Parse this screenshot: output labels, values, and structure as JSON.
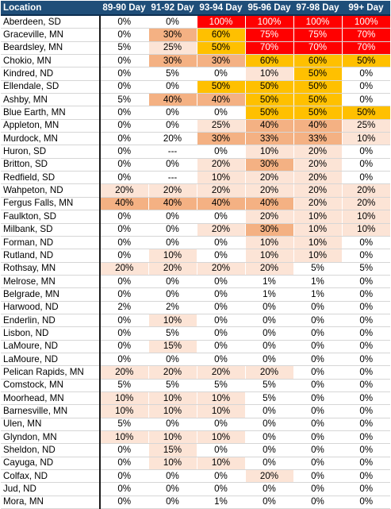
{
  "table": {
    "headers": [
      "Location",
      "89-90 Day",
      "91-92 Day",
      "93-94 Day",
      "95-96 Day",
      "97-98 Day",
      "99+ Day"
    ],
    "legend_colors": {
      "none": "#ffffff",
      "light": "#fce4d6",
      "medium": "#f4b183",
      "orange": "#ffc000",
      "red": "#ff0000",
      "header": "#1f4e79"
    },
    "rows": [
      {
        "location": "Aberdeen, SD",
        "values": [
          "0%",
          "0%",
          "100%",
          "100%",
          "100%",
          "100%"
        ],
        "levels": [
          "n",
          "n",
          "r",
          "r",
          "r",
          "r"
        ]
      },
      {
        "location": "Graceville, MN",
        "values": [
          "0%",
          "30%",
          "60%",
          "75%",
          "75%",
          "70%"
        ],
        "levels": [
          "n",
          "m",
          "o",
          "r",
          "r",
          "r"
        ]
      },
      {
        "location": "Beardsley, MN",
        "values": [
          "5%",
          "25%",
          "50%",
          "70%",
          "70%",
          "70%"
        ],
        "levels": [
          "n",
          "l",
          "o",
          "r",
          "r",
          "r"
        ]
      },
      {
        "location": "Chokio, MN",
        "values": [
          "0%",
          "30%",
          "30%",
          "60%",
          "60%",
          "50%"
        ],
        "levels": [
          "n",
          "m",
          "m",
          "o",
          "o",
          "o"
        ]
      },
      {
        "location": "Kindred, ND",
        "values": [
          "0%",
          "5%",
          "0%",
          "10%",
          "50%",
          "0%"
        ],
        "levels": [
          "n",
          "n",
          "n",
          "l",
          "o",
          "n"
        ]
      },
      {
        "location": "Ellendale, SD",
        "values": [
          "0%",
          "0%",
          "50%",
          "50%",
          "50%",
          "0%"
        ],
        "levels": [
          "n",
          "n",
          "o",
          "o",
          "o",
          "n"
        ]
      },
      {
        "location": "Ashby, MN",
        "values": [
          "5%",
          "40%",
          "40%",
          "50%",
          "50%",
          "0%"
        ],
        "levels": [
          "n",
          "m",
          "m",
          "o",
          "o",
          "n"
        ]
      },
      {
        "location": "Blue Earth, MN",
        "values": [
          "0%",
          "0%",
          "0%",
          "50%",
          "50%",
          "50%"
        ],
        "levels": [
          "n",
          "n",
          "n",
          "o",
          "o",
          "o"
        ]
      },
      {
        "location": "Appleton, MN",
        "values": [
          "0%",
          "0%",
          "25%",
          "40%",
          "40%",
          "25%"
        ],
        "levels": [
          "n",
          "n",
          "l",
          "m",
          "m",
          "l"
        ]
      },
      {
        "location": "Murdock, MN",
        "values": [
          "0%",
          "20%",
          "30%",
          "33%",
          "33%",
          "10%"
        ],
        "levels": [
          "n",
          "n",
          "m",
          "m",
          "m",
          "l"
        ]
      },
      {
        "location": "Huron, SD",
        "values": [
          "0%",
          "---",
          "0%",
          "10%",
          "20%",
          "0%"
        ],
        "levels": [
          "n",
          "n",
          "n",
          "l",
          "l",
          "n"
        ]
      },
      {
        "location": "Britton, SD",
        "values": [
          "0%",
          "0%",
          "20%",
          "30%",
          "20%",
          "0%"
        ],
        "levels": [
          "n",
          "n",
          "l",
          "m",
          "l",
          "n"
        ]
      },
      {
        "location": "Redfield, SD",
        "values": [
          "0%",
          "---",
          "10%",
          "20%",
          "20%",
          "0%"
        ],
        "levels": [
          "n",
          "n",
          "l",
          "l",
          "l",
          "n"
        ]
      },
      {
        "location": "Wahpeton, ND",
        "values": [
          "20%",
          "20%",
          "20%",
          "20%",
          "20%",
          "20%"
        ],
        "levels": [
          "l",
          "l",
          "l",
          "l",
          "l",
          "l"
        ]
      },
      {
        "location": "Fergus Falls, MN",
        "values": [
          "40%",
          "40%",
          "40%",
          "40%",
          "20%",
          "20%"
        ],
        "levels": [
          "m",
          "m",
          "m",
          "m",
          "l",
          "l"
        ]
      },
      {
        "location": "Faulkton, SD",
        "values": [
          "0%",
          "0%",
          "0%",
          "20%",
          "10%",
          "10%"
        ],
        "levels": [
          "n",
          "n",
          "n",
          "l",
          "l",
          "l"
        ]
      },
      {
        "location": "Milbank, SD",
        "values": [
          "0%",
          "0%",
          "20%",
          "30%",
          "10%",
          "10%"
        ],
        "levels": [
          "n",
          "n",
          "l",
          "m",
          "l",
          "l"
        ]
      },
      {
        "location": "Forman, ND",
        "values": [
          "0%",
          "0%",
          "0%",
          "10%",
          "10%",
          "0%"
        ],
        "levels": [
          "n",
          "n",
          "n",
          "l",
          "l",
          "n"
        ]
      },
      {
        "location": "Rutland, ND",
        "values": [
          "0%",
          "10%",
          "0%",
          "10%",
          "10%",
          "0%"
        ],
        "levels": [
          "n",
          "l",
          "n",
          "l",
          "l",
          "n"
        ]
      },
      {
        "location": "Rothsay, MN",
        "values": [
          "20%",
          "20%",
          "20%",
          "20%",
          "5%",
          "5%"
        ],
        "levels": [
          "l",
          "l",
          "l",
          "l",
          "n",
          "n"
        ]
      },
      {
        "location": "Melrose, MN",
        "values": [
          "0%",
          "0%",
          "0%",
          "1%",
          "1%",
          "0%"
        ],
        "levels": [
          "n",
          "n",
          "n",
          "n",
          "n",
          "n"
        ]
      },
      {
        "location": "Belgrade, MN",
        "values": [
          "0%",
          "0%",
          "0%",
          "1%",
          "1%",
          "0%"
        ],
        "levels": [
          "n",
          "n",
          "n",
          "n",
          "n",
          "n"
        ]
      },
      {
        "location": "Harwood, ND",
        "values": [
          "2%",
          "2%",
          "0%",
          "0%",
          "0%",
          "0%"
        ],
        "levels": [
          "n",
          "n",
          "n",
          "n",
          "n",
          "n"
        ]
      },
      {
        "location": "Enderlin, ND",
        "values": [
          "0%",
          "10%",
          "0%",
          "0%",
          "0%",
          "0%"
        ],
        "levels": [
          "n",
          "l",
          "n",
          "n",
          "n",
          "n"
        ]
      },
      {
        "location": "Lisbon, ND",
        "values": [
          "0%",
          "5%",
          "0%",
          "0%",
          "0%",
          "0%"
        ],
        "levels": [
          "n",
          "n",
          "n",
          "n",
          "n",
          "n"
        ]
      },
      {
        "location": "LaMoure, ND",
        "values": [
          "0%",
          "15%",
          "0%",
          "0%",
          "0%",
          "0%"
        ],
        "levels": [
          "n",
          "l",
          "n",
          "n",
          "n",
          "n"
        ]
      },
      {
        "location": "LaMoure, ND",
        "values": [
          "0%",
          "0%",
          "0%",
          "0%",
          "0%",
          "0%"
        ],
        "levels": [
          "n",
          "n",
          "n",
          "n",
          "n",
          "n"
        ]
      },
      {
        "location": "Pelican Rapids, MN",
        "values": [
          "20%",
          "20%",
          "20%",
          "20%",
          "0%",
          "0%"
        ],
        "levels": [
          "l",
          "l",
          "l",
          "l",
          "n",
          "n"
        ]
      },
      {
        "location": "Comstock, MN",
        "values": [
          "5%",
          "5%",
          "5%",
          "5%",
          "0%",
          "0%"
        ],
        "levels": [
          "n",
          "n",
          "n",
          "n",
          "n",
          "n"
        ]
      },
      {
        "location": "Moorhead, MN",
        "values": [
          "10%",
          "10%",
          "10%",
          "5%",
          "0%",
          "0%"
        ],
        "levels": [
          "l",
          "l",
          "l",
          "n",
          "n",
          "n"
        ]
      },
      {
        "location": "Barnesville, MN",
        "values": [
          "10%",
          "10%",
          "10%",
          "0%",
          "0%",
          "0%"
        ],
        "levels": [
          "l",
          "l",
          "l",
          "n",
          "n",
          "n"
        ]
      },
      {
        "location": "Ulen, MN",
        "values": [
          "5%",
          "0%",
          "0%",
          "0%",
          "0%",
          "0%"
        ],
        "levels": [
          "n",
          "n",
          "n",
          "n",
          "n",
          "n"
        ]
      },
      {
        "location": "Glyndon, MN",
        "values": [
          "10%",
          "10%",
          "10%",
          "0%",
          "0%",
          "0%"
        ],
        "levels": [
          "l",
          "l",
          "l",
          "n",
          "n",
          "n"
        ]
      },
      {
        "location": "Sheldon, ND",
        "values": [
          "0%",
          "15%",
          "0%",
          "0%",
          "0%",
          "0%"
        ],
        "levels": [
          "n",
          "l",
          "n",
          "n",
          "n",
          "n"
        ]
      },
      {
        "location": "Cayuga, ND",
        "values": [
          "0%",
          "10%",
          "10%",
          "0%",
          "0%",
          "0%"
        ],
        "levels": [
          "n",
          "l",
          "l",
          "n",
          "n",
          "n"
        ]
      },
      {
        "location": "Colfax, ND",
        "values": [
          "0%",
          "0%",
          "0%",
          "20%",
          "0%",
          "0%"
        ],
        "levels": [
          "n",
          "n",
          "n",
          "l",
          "n",
          "n"
        ]
      },
      {
        "location": "Jud, ND",
        "values": [
          "0%",
          "0%",
          "0%",
          "0%",
          "0%",
          "0%"
        ],
        "levels": [
          "n",
          "n",
          "n",
          "n",
          "n",
          "n"
        ]
      },
      {
        "location": "Mora, MN",
        "values": [
          "0%",
          "0%",
          "1%",
          "0%",
          "0%",
          "0%"
        ],
        "levels": [
          "n",
          "n",
          "n",
          "n",
          "n",
          "n"
        ]
      }
    ]
  }
}
